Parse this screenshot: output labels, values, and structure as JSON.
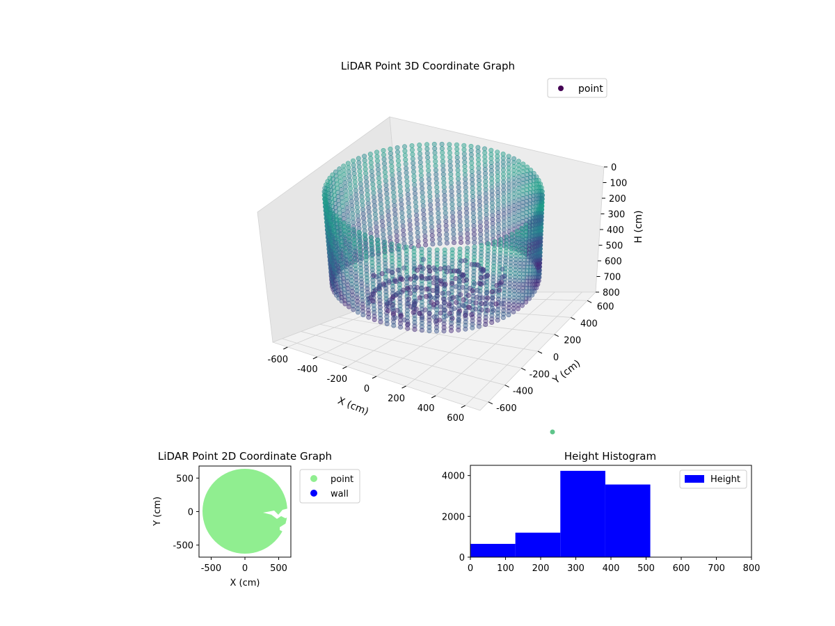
{
  "chart_data": [
    {
      "type": "scatter3d",
      "title": "LiDAR Point 3D Coordinate Graph",
      "xlabel": "X (cm)",
      "ylabel": "Y (cm)",
      "zlabel": "H (cm)",
      "xlim": [
        -700,
        700
      ],
      "ylim": [
        -700,
        700
      ],
      "zlim": [
        0,
        800
      ],
      "z_inverted": true,
      "xticks": [
        -600,
        -400,
        -200,
        0,
        200,
        400,
        600
      ],
      "yticks": [
        -600,
        -400,
        -200,
        0,
        200,
        400,
        600
      ],
      "zticks": [
        0,
        100,
        200,
        300,
        400,
        500,
        600,
        700,
        800
      ],
      "legend": [
        "point"
      ],
      "legend_position": "top-right",
      "colormap": "viridis",
      "grid": true,
      "description_series": [
        {
          "name": "point",
          "shape": "cylindrical wall",
          "radius": 600,
          "height_range": [
            0,
            800
          ],
          "center": [
            0,
            0
          ]
        }
      ]
    },
    {
      "type": "scatter",
      "title": "LiDAR Point 2D Coordinate Graph",
      "xlabel": "X (cm)",
      "ylabel": "Y (cm)",
      "xlim": [
        -680,
        680
      ],
      "ylim": [
        -680,
        680
      ],
      "xticks": [
        -500,
        0,
        500
      ],
      "yticks": [
        -500,
        0,
        500
      ],
      "legend": [
        "point",
        "wall"
      ],
      "legend_position": "outside-right",
      "series": [
        {
          "name": "point",
          "color": "#90ee90",
          "shape": "disc",
          "radius": 620
        },
        {
          "name": "wall",
          "color": "#0000ff"
        }
      ]
    },
    {
      "type": "histogram",
      "title": "Height Histogram",
      "xlim": [
        0,
        800
      ],
      "ylim": [
        0,
        4500
      ],
      "xticks": [
        0,
        100,
        200,
        300,
        400,
        500,
        600,
        700,
        800
      ],
      "yticks": [
        0,
        2000,
        4000
      ],
      "legend": [
        "Height"
      ],
      "legend_position": "top-right",
      "color": "#0000ff",
      "bins": [
        {
          "x0": 0,
          "x1": 128,
          "count": 650
        },
        {
          "x0": 128,
          "x1": 256,
          "count": 1200
        },
        {
          "x0": 256,
          "x1": 384,
          "count": 4230
        },
        {
          "x0": 384,
          "x1": 512,
          "count": 3560
        }
      ]
    }
  ]
}
